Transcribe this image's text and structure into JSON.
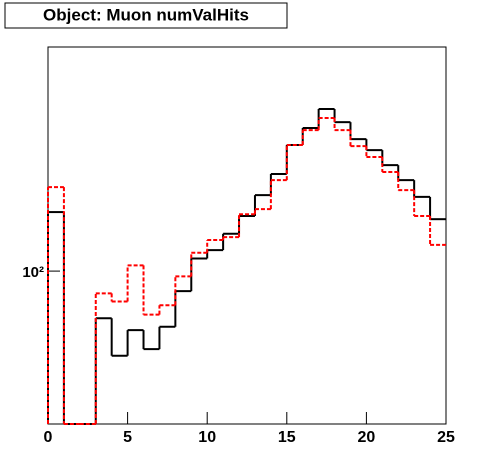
{
  "chart_data": {
    "type": "histogram",
    "title": "Object: Muon numValHits",
    "bins": [
      0,
      1,
      2,
      3,
      4,
      5,
      6,
      7,
      8,
      9,
      10,
      11,
      12,
      13,
      14,
      15,
      16,
      17,
      18,
      19,
      20,
      21,
      22,
      23,
      24,
      25
    ],
    "series": [
      {
        "color": "#000000",
        "dash": false,
        "values": [
          200,
          0,
          0,
          57.5,
          37,
          50,
          40,
          52,
          79,
          116,
          128,
          155,
          191,
          244,
          313,
          440,
          537,
          671,
          575,
          471,
          414,
          347,
          291,
          239,
          184
        ]
      },
      {
        "color": "#ff0000",
        "dash": true,
        "values": [
          268,
          0,
          0,
          77,
          70,
          107,
          60,
          67,
          94,
          124,
          144,
          149,
          195,
          207,
          291,
          440,
          524,
          604,
          524,
          434,
          382,
          320,
          259,
          191,
          136
        ]
      }
    ],
    "xlim": [
      0,
      25
    ],
    "xticks": [
      0,
      5,
      10,
      15,
      20,
      25
    ],
    "ylim": [
      16.6,
      1390
    ],
    "yticks": [
      {
        "value": 100,
        "label": "10²"
      }
    ],
    "log_y": true
  }
}
